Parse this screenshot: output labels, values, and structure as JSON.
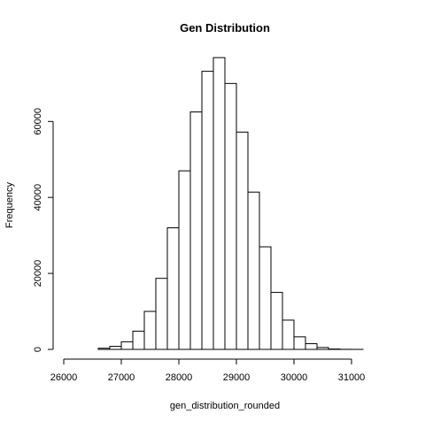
{
  "chart_data": {
    "type": "bar",
    "title": "Gen Distribution",
    "xlabel": "gen_distribution_rounded",
    "ylabel": "Frequency",
    "bin_width": 200,
    "bins": [
      {
        "start": 26600,
        "end": 26800,
        "count": 300
      },
      {
        "start": 26800,
        "end": 27000,
        "count": 800
      },
      {
        "start": 27000,
        "end": 27200,
        "count": 2000
      },
      {
        "start": 27200,
        "end": 27400,
        "count": 4800
      },
      {
        "start": 27400,
        "end": 27600,
        "count": 10000
      },
      {
        "start": 27600,
        "end": 27800,
        "count": 18700
      },
      {
        "start": 27800,
        "end": 28000,
        "count": 32000
      },
      {
        "start": 28000,
        "end": 28200,
        "count": 47000
      },
      {
        "start": 28200,
        "end": 28400,
        "count": 62500
      },
      {
        "start": 28400,
        "end": 28600,
        "count": 73200
      },
      {
        "start": 28600,
        "end": 28800,
        "count": 76800
      },
      {
        "start": 28800,
        "end": 29000,
        "count": 70000
      },
      {
        "start": 29000,
        "end": 29200,
        "count": 57200
      },
      {
        "start": 29200,
        "end": 29400,
        "count": 41400
      },
      {
        "start": 29400,
        "end": 29600,
        "count": 27000
      },
      {
        "start": 29600,
        "end": 29800,
        "count": 15000
      },
      {
        "start": 29800,
        "end": 30000,
        "count": 7700
      },
      {
        "start": 30000,
        "end": 30200,
        "count": 3300
      },
      {
        "start": 30200,
        "end": 30400,
        "count": 1500
      },
      {
        "start": 30400,
        "end": 30600,
        "count": 500
      },
      {
        "start": 30600,
        "end": 30800,
        "count": 100
      },
      {
        "start": 30800,
        "end": 31000,
        "count": 20
      },
      {
        "start": 31000,
        "end": 31200,
        "count": 5
      },
      {
        "start": 31200,
        "end": 31400,
        "count": 0
      },
      {
        "start": 31400,
        "end": 31600,
        "count": 0
      }
    ],
    "x_range": [
      26000,
      31600
    ],
    "x_axis_min": 26000,
    "x_axis_max": 31600,
    "x_ticks": [
      26000,
      27000,
      28000,
      29000,
      30000,
      31000
    ],
    "x_tick_labels": [
      "26000",
      "27000",
      "28000",
      "29000",
      "30000",
      "31000"
    ],
    "ylim": [
      0,
      76800
    ],
    "y_ticks": [
      0,
      20000,
      40000,
      60000
    ],
    "y_tick_labels": [
      "0",
      "20000",
      "40000",
      "60000"
    ],
    "grid": false,
    "bar_fill": "#ffffff",
    "bar_stroke": "#000000"
  }
}
